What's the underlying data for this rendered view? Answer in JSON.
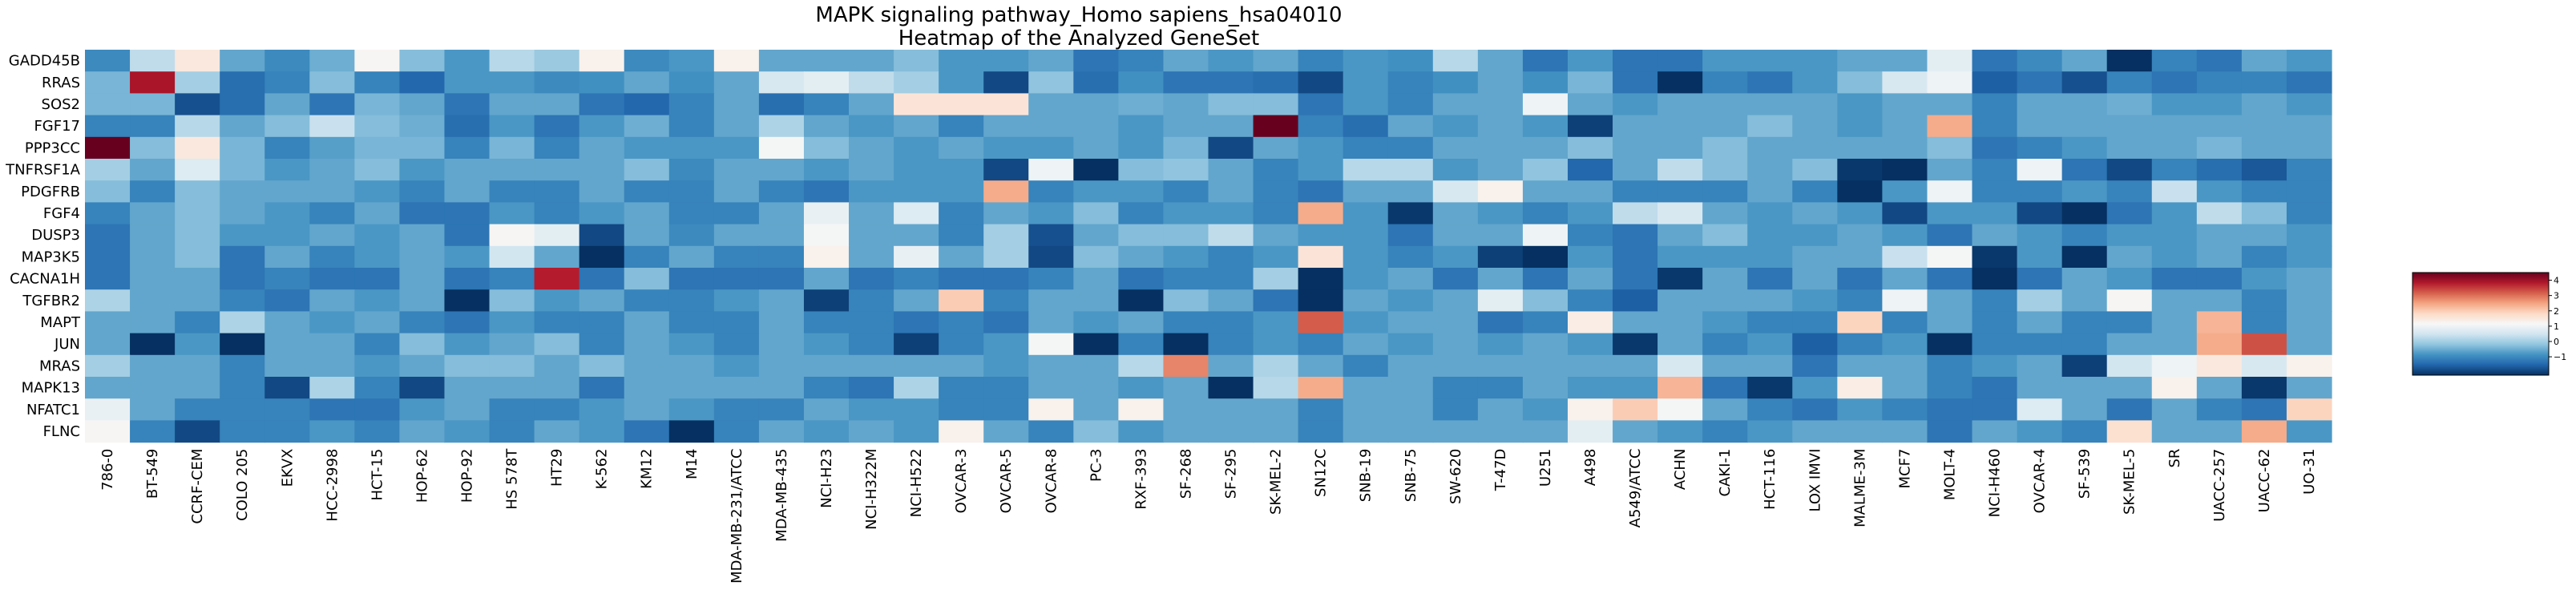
{
  "chart_data": {
    "type": "heatmap",
    "title": "MAPK signaling pathway_Homo sapiens_hsa04010",
    "subtitle": "Heatmap of the Analyzed GeneSet",
    "rows": [
      "GADD45B",
      "RRAS",
      "SOS2",
      "FGF17",
      "PPP3CC",
      "TNFRSF1A",
      "PDGFRB",
      "FGF4",
      "DUSP3",
      "MAP3K5",
      "CACNA1H",
      "TGFBR2",
      "MAPT",
      "JUN",
      "MRAS",
      "MAPK13",
      "NFATC1",
      "FLNC"
    ],
    "columns": [
      "786-0",
      "BT-549",
      "CCRF-CEM",
      "COLO 205",
      "EKVX",
      "HCC-2998",
      "HCT-15",
      "HOP-62",
      "HOP-92",
      "HS 578T",
      "HT29",
      "K-562",
      "KM12",
      "M14",
      "MDA-MB-231/ATCC",
      "MDA-MB-435",
      "NCI-H23",
      "NCI-H322M",
      "NCI-H522",
      "OVCAR-3",
      "OVCAR-5",
      "OVCAR-8",
      "PC-3",
      "RXF-393",
      "SF-268",
      "SF-295",
      "SK-MEL-2",
      "SN12C",
      "SNB-19",
      "SNB-75",
      "SW-620",
      "T-47D",
      "U251",
      "A498",
      "A549/ATCC",
      "ACHN",
      "CAKI-1",
      "HCT-116",
      "LOX IMVI",
      "MALME-3M",
      "MCF7",
      "MOLT-4",
      "NCI-H460",
      "OVCAR-4",
      "SF-539",
      "SK-MEL-5",
      "SR",
      "UACC-257",
      "UACC-62",
      "UO-31"
    ],
    "values": [
      [
        -1.0,
        0.3,
        1.5,
        -0.6,
        -1.0,
        -0.5,
        1.2,
        -0.3,
        -0.8,
        0.2,
        -0.1,
        1.3,
        -1.0,
        -0.8,
        1.3,
        -0.6,
        -0.6,
        -0.6,
        -0.3,
        -0.8,
        -0.8,
        -0.6,
        -1.3,
        -1.1,
        -0.6,
        -0.8,
        -0.6,
        -1.1,
        -0.8,
        -0.9,
        0.2,
        -0.6,
        -1.3,
        -0.8,
        -1.3,
        -1.3,
        -0.8,
        -0.8,
        -0.8,
        -0.6,
        -0.6,
        0.8,
        -1.3,
        -1.0,
        -0.6,
        -2.2,
        -1.1,
        -1.3,
        -0.6,
        -0.8
      ],
      [
        -0.4,
        3.9,
        0.0,
        -1.4,
        -1.1,
        -0.3,
        -1.1,
        -1.5,
        -0.8,
        -0.8,
        -1.0,
        -0.9,
        -0.6,
        -0.9,
        -0.6,
        0.6,
        0.8,
        0.3,
        0.0,
        -0.8,
        -1.9,
        -0.2,
        -1.4,
        -0.9,
        -1.3,
        -1.3,
        -1.4,
        -1.9,
        -0.8,
        -1.1,
        -0.9,
        -0.6,
        -0.9,
        -0.4,
        -1.3,
        -3.0,
        -1.1,
        -1.3,
        -0.8,
        -0.3,
        0.6,
        1.0,
        -1.6,
        -1.3,
        -1.8,
        -1.1,
        -1.3,
        -1.1,
        -1.1,
        -1.3
      ],
      [
        -0.4,
        -0.4,
        -1.8,
        -1.4,
        -0.6,
        -1.3,
        -0.4,
        -0.6,
        -1.3,
        -0.6,
        -0.6,
        -1.3,
        -1.5,
        -1.1,
        -0.6,
        -1.4,
        -1.1,
        -0.6,
        1.6,
        1.6,
        1.6,
        -0.6,
        -0.6,
        -0.5,
        -0.6,
        -0.3,
        -0.3,
        -1.3,
        -0.8,
        -1.1,
        -0.6,
        -0.6,
        1.0,
        -0.6,
        -0.8,
        -0.6,
        -0.6,
        -0.6,
        -0.6,
        -0.8,
        -0.6,
        -0.6,
        -1.1,
        -0.6,
        -0.6,
        -0.5,
        -0.8,
        -0.8,
        -0.6,
        -0.8
      ],
      [
        -1.1,
        -1.1,
        0.2,
        -0.6,
        -0.3,
        0.4,
        -0.3,
        -0.5,
        -1.4,
        -0.8,
        -1.3,
        -0.8,
        -0.5,
        -1.1,
        -0.6,
        0.1,
        -0.6,
        -0.8,
        -0.6,
        -1.1,
        -0.6,
        -0.6,
        -0.6,
        -0.8,
        -0.6,
        -0.6,
        4.6,
        -1.1,
        -1.4,
        -0.6,
        -0.8,
        -0.6,
        -0.8,
        -2.0,
        -0.6,
        -0.6,
        -0.6,
        -0.3,
        -0.6,
        -0.8,
        -0.6,
        2.4,
        -1.1,
        -0.6,
        -0.6,
        -0.6,
        -0.6,
        -0.6,
        -0.6,
        -0.6
      ],
      [
        4.8,
        -0.3,
        1.5,
        -0.4,
        -1.1,
        -0.7,
        -0.4,
        -0.4,
        -1.1,
        -0.4,
        -1.1,
        -0.6,
        -0.8,
        -0.8,
        -0.8,
        1.1,
        -0.3,
        -0.6,
        -0.8,
        -0.6,
        -0.8,
        -0.8,
        -0.6,
        -0.8,
        -0.4,
        -1.9,
        -0.6,
        -0.8,
        -1.1,
        -1.1,
        -0.6,
        -0.6,
        -0.6,
        -0.3,
        -0.6,
        -0.6,
        -0.3,
        -0.6,
        -0.6,
        -0.6,
        -0.6,
        -0.3,
        -1.3,
        -1.1,
        -0.8,
        -0.6,
        -0.6,
        -0.4,
        -0.6,
        -0.6
      ],
      [
        0.0,
        -0.6,
        0.7,
        -0.4,
        -0.8,
        -0.6,
        -0.3,
        -0.8,
        -0.6,
        -0.6,
        -0.6,
        -0.6,
        -0.3,
        -1.0,
        -0.6,
        -0.6,
        -0.8,
        -0.6,
        -0.8,
        -0.8,
        -1.9,
        1.0,
        -2.3,
        -0.3,
        -0.2,
        -0.6,
        -1.1,
        -0.8,
        0.2,
        0.2,
        -0.8,
        -0.6,
        -0.2,
        -1.5,
        -0.6,
        0.3,
        -0.3,
        -0.6,
        -0.3,
        -2.1,
        -2.5,
        -0.6,
        -1.1,
        1.0,
        -1.3,
        -1.9,
        -1.1,
        -1.4,
        -1.7,
        -1.1
      ],
      [
        -0.3,
        -1.1,
        -0.3,
        -0.6,
        -0.6,
        -0.6,
        -0.8,
        -1.1,
        -0.6,
        -1.1,
        -1.1,
        -0.6,
        -1.1,
        -1.1,
        -0.6,
        -1.1,
        -1.3,
        -0.8,
        -0.8,
        -0.8,
        2.4,
        -1.1,
        -0.8,
        -0.8,
        -1.1,
        -0.6,
        -1.1,
        -1.3,
        -0.6,
        -0.6,
        0.6,
        1.3,
        -0.6,
        -0.6,
        -1.1,
        -1.1,
        -1.1,
        -0.6,
        -1.1,
        -2.2,
        -0.8,
        1.0,
        -1.1,
        -1.1,
        -0.8,
        -1.1,
        0.4,
        -0.8,
        -1.1,
        -1.1
      ],
      [
        -1.1,
        -0.6,
        -0.3,
        -0.6,
        -0.8,
        -1.1,
        -0.6,
        -1.3,
        -1.3,
        -0.8,
        -1.1,
        -0.8,
        -0.6,
        -1.1,
        -1.1,
        -0.6,
        0.9,
        -0.6,
        0.7,
        -1.1,
        -0.6,
        -0.8,
        -0.3,
        -1.1,
        -0.8,
        -0.8,
        -1.1,
        2.4,
        -0.8,
        -2.1,
        -0.6,
        -0.8,
        -1.1,
        -0.8,
        0.3,
        0.6,
        -0.6,
        -0.8,
        -0.6,
        -0.8,
        -1.9,
        -0.8,
        -0.8,
        -1.9,
        -2.2,
        -1.3,
        -0.8,
        0.3,
        -0.3,
        -1.1
      ],
      [
        -1.3,
        -0.6,
        -0.3,
        -0.8,
        -0.8,
        -0.6,
        -0.8,
        -0.6,
        -1.3,
        1.2,
        0.8,
        -1.9,
        -0.6,
        -1.0,
        -0.6,
        -0.6,
        1.1,
        -0.6,
        -0.6,
        -1.1,
        0.0,
        -1.8,
        -0.6,
        -0.3,
        -0.3,
        0.3,
        -0.6,
        -0.8,
        -0.8,
        -1.3,
        -0.6,
        -0.6,
        1.0,
        -1.1,
        -1.3,
        -0.6,
        -0.3,
        -0.8,
        -0.8,
        -0.6,
        -0.8,
        -1.3,
        -0.6,
        -0.8,
        -1.1,
        -0.8,
        -0.8,
        -0.6,
        -0.6,
        -0.8
      ],
      [
        -1.3,
        -0.6,
        -0.3,
        -1.3,
        -0.6,
        -1.1,
        -0.8,
        -0.6,
        -0.8,
        0.5,
        -0.6,
        -2.3,
        -1.1,
        -0.6,
        -1.1,
        -1.1,
        1.3,
        -0.6,
        0.9,
        -0.6,
        0.0,
        -1.9,
        -0.3,
        -0.6,
        -0.8,
        -1.1,
        -0.8,
        1.6,
        -0.8,
        -1.1,
        -0.8,
        -2.0,
        -3.0,
        -0.8,
        -1.3,
        -0.8,
        -0.8,
        -0.8,
        -0.6,
        -0.6,
        0.4,
        1.1,
        -2.1,
        -0.8,
        -2.5,
        -0.6,
        -0.8,
        -0.6,
        -1.1,
        -0.8
      ],
      [
        -1.3,
        -0.6,
        -0.6,
        -1.3,
        -1.1,
        -1.3,
        -1.3,
        -0.6,
        -1.3,
        -1.1,
        3.8,
        -1.3,
        -0.3,
        -1.3,
        -1.3,
        -1.3,
        -0.6,
        -1.3,
        -1.1,
        -1.3,
        -1.3,
        -1.1,
        -0.6,
        -1.3,
        -1.1,
        -1.1,
        0.0,
        -2.8,
        -0.8,
        -0.6,
        -1.3,
        -0.6,
        -1.3,
        -0.6,
        -1.3,
        -2.1,
        -0.6,
        -1.3,
        -0.6,
        -1.3,
        -0.6,
        -1.3,
        -2.3,
        -1.3,
        -0.6,
        -0.8,
        -1.3,
        -1.3,
        -0.8,
        -0.6
      ],
      [
        0.1,
        -0.6,
        -0.6,
        -1.1,
        -1.3,
        -0.6,
        -0.8,
        -0.6,
        -2.5,
        -0.3,
        -0.8,
        -0.6,
        -1.1,
        -1.1,
        -0.8,
        -0.6,
        -2.0,
        -1.1,
        -0.6,
        2.0,
        -1.1,
        -0.6,
        -0.6,
        -2.3,
        -0.3,
        -0.6,
        -1.3,
        -2.8,
        -0.6,
        -0.8,
        -0.6,
        0.8,
        -0.3,
        -1.1,
        -1.6,
        -0.6,
        -0.6,
        -0.6,
        -0.8,
        -1.1,
        1.0,
        -0.6,
        -1.1,
        0.0,
        -0.6,
        1.2,
        -0.6,
        -0.6,
        -1.1,
        -0.6
      ],
      [
        -0.6,
        -0.6,
        -1.1,
        0.1,
        -0.6,
        -0.8,
        -0.6,
        -1.1,
        -1.3,
        -0.8,
        -1.1,
        -1.1,
        -0.6,
        -1.1,
        -1.1,
        -0.6,
        -1.1,
        -1.1,
        -1.3,
        -1.1,
        -1.3,
        -0.6,
        -0.8,
        -0.6,
        -1.1,
        -1.1,
        -0.8,
        3.2,
        -0.8,
        -0.6,
        -0.6,
        -1.3,
        -1.1,
        1.4,
        -0.6,
        -0.6,
        -0.8,
        -1.1,
        -1.1,
        1.9,
        -1.1,
        -0.6,
        -1.1,
        -0.6,
        -1.1,
        -1.1,
        -0.6,
        2.3,
        -1.1,
        -0.6
      ],
      [
        -0.6,
        -2.3,
        -0.8,
        -2.5,
        -0.6,
        -0.6,
        -1.1,
        -0.3,
        -0.8,
        -0.6,
        -0.3,
        -1.1,
        -0.6,
        -0.8,
        -1.1,
        -0.6,
        -0.8,
        -1.1,
        -2.0,
        -1.1,
        -0.8,
        1.1,
        -2.3,
        -1.1,
        -2.8,
        -1.1,
        -0.8,
        -1.1,
        -0.6,
        -0.8,
        -0.6,
        -0.8,
        -0.6,
        -0.8,
        -2.1,
        -0.6,
        -1.1,
        -0.8,
        -1.6,
        -1.1,
        -0.8,
        -2.6,
        -1.1,
        -1.1,
        -1.1,
        -0.6,
        -0.6,
        2.4,
        3.3,
        -0.6
      ],
      [
        0.0,
        -0.6,
        -0.6,
        -1.1,
        -0.6,
        -0.6,
        -0.8,
        -0.6,
        -0.3,
        -0.3,
        -0.6,
        -0.3,
        -0.6,
        -0.6,
        -0.8,
        -0.6,
        -0.6,
        -0.6,
        -0.6,
        -0.6,
        -0.8,
        -0.6,
        -0.6,
        0.2,
        2.8,
        -0.6,
        0.1,
        -0.6,
        -1.1,
        -0.6,
        -0.6,
        -0.6,
        -0.6,
        -0.6,
        -0.6,
        0.6,
        -0.6,
        -0.6,
        -1.3,
        -0.6,
        -0.6,
        -1.1,
        -0.8,
        -0.6,
        -2.0,
        0.5,
        1.0,
        1.5,
        0.6,
        1.3
      ],
      [
        -0.6,
        -0.6,
        -0.6,
        -1.1,
        -1.9,
        0.1,
        -1.1,
        -1.9,
        -0.6,
        -0.6,
        -0.6,
        -1.3,
        -0.6,
        -0.6,
        -0.6,
        -0.6,
        -1.1,
        -1.3,
        0.1,
        -1.1,
        -1.1,
        -0.6,
        -0.6,
        -0.8,
        -0.6,
        -2.2,
        0.2,
        2.4,
        -0.6,
        -0.6,
        -1.1,
        -1.1,
        -0.6,
        -0.8,
        -0.8,
        2.3,
        -1.3,
        -2.1,
        -0.8,
        1.4,
        -0.6,
        -1.1,
        -1.3,
        -0.6,
        -0.6,
        -0.6,
        1.3,
        -0.6,
        -2.1,
        -0.6
      ],
      [
        0.9,
        -0.6,
        -1.1,
        -1.1,
        -1.1,
        -1.3,
        -1.3,
        -0.8,
        -0.6,
        -1.1,
        -1.1,
        -0.8,
        -0.6,
        -0.8,
        -1.1,
        -1.1,
        -0.6,
        -0.8,
        -0.8,
        -1.1,
        -1.1,
        1.3,
        -0.6,
        1.3,
        -0.6,
        -0.6,
        -0.6,
        -1.1,
        -0.6,
        -0.6,
        -1.1,
        -0.6,
        -0.8,
        1.3,
        2.0,
        1.1,
        -0.6,
        -1.1,
        -1.3,
        -0.8,
        -1.1,
        -1.3,
        -1.3,
        0.7,
        -0.6,
        -1.3,
        -0.6,
        -1.1,
        -1.3,
        1.9
      ],
      [
        1.2,
        -1.1,
        -1.9,
        -1.1,
        -1.1,
        -0.8,
        -1.1,
        -0.6,
        -0.8,
        -1.1,
        -0.6,
        -0.8,
        -1.3,
        -2.3,
        -1.1,
        -0.6,
        -0.8,
        -0.6,
        -0.8,
        1.3,
        -0.6,
        -1.1,
        -0.3,
        -0.8,
        -0.6,
        -0.6,
        -0.6,
        -1.1,
        -0.6,
        -0.6,
        -0.6,
        -0.6,
        -0.6,
        0.8,
        -0.6,
        -0.8,
        -1.1,
        -0.8,
        -0.6,
        -0.6,
        -0.6,
        -1.3,
        -0.6,
        -0.8,
        -1.1,
        1.7,
        -0.6,
        -0.6,
        2.4,
        -0.8
      ]
    ],
    "colormap": "RdBu_r",
    "vmin": -2.2,
    "vmax": 4.5,
    "colorbar_ticks": [
      -1,
      0,
      1,
      2,
      3,
      4
    ],
    "legend": "right",
    "grid": false
  }
}
